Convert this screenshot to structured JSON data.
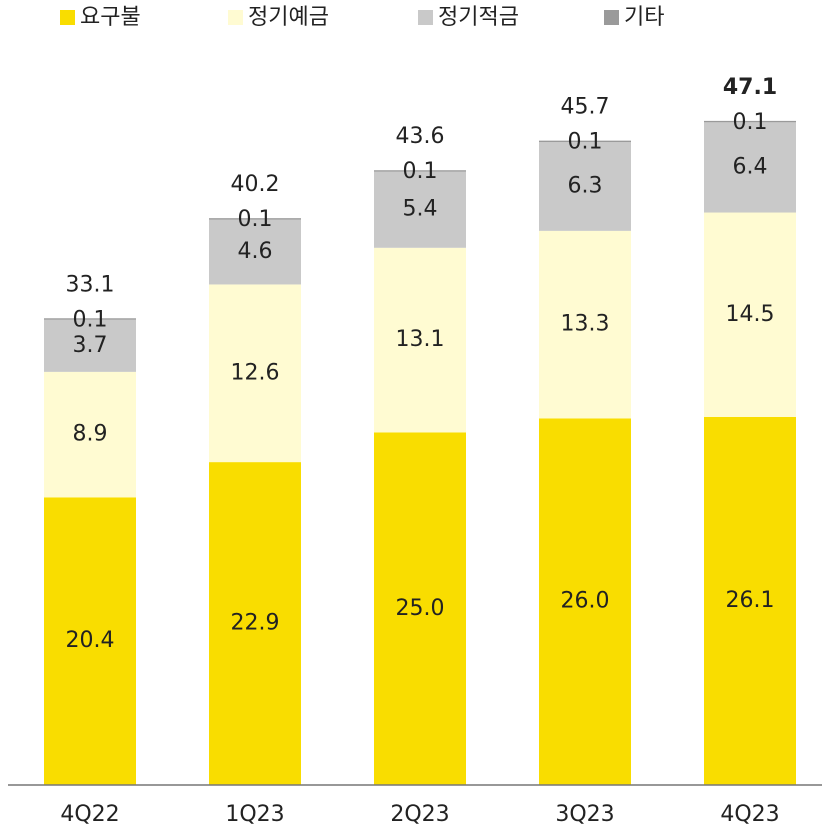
{
  "chart_data": {
    "type": "stacked_bar",
    "categories": [
      "4Q22",
      "1Q23",
      "2Q23",
      "3Q23",
      "4Q23"
    ],
    "series": [
      {
        "name": "요구불",
        "color": "#f9dd00",
        "values": [
          20.4,
          22.9,
          25.0,
          26.0,
          26.1
        ],
        "value_labels": [
          "20.4",
          "22.9",
          "25.0",
          "26.0",
          "26.1"
        ]
      },
      {
        "name": "정기예금",
        "color": "#fffbd2",
        "values": [
          8.9,
          12.6,
          13.1,
          13.3,
          14.5
        ],
        "value_labels": [
          "8.9",
          "12.6",
          "13.1",
          "13.3",
          "14.5"
        ]
      },
      {
        "name": "정기적금",
        "color": "#c9c9c9",
        "values": [
          3.7,
          4.6,
          5.4,
          6.3,
          6.4
        ],
        "value_labels": [
          "3.7",
          "4.6",
          "5.4",
          "6.3",
          "6.4"
        ]
      },
      {
        "name": "기타",
        "color": "#9a9a9a",
        "values": [
          0.1,
          0.1,
          0.1,
          0.1,
          0.1
        ],
        "value_labels": [
          "0.1",
          "0.1",
          "0.1",
          "0.1",
          "0.1"
        ]
      }
    ],
    "totals": [
      33.1,
      40.2,
      43.6,
      45.7,
      47.1
    ],
    "ylim": [
      0,
      50
    ]
  }
}
